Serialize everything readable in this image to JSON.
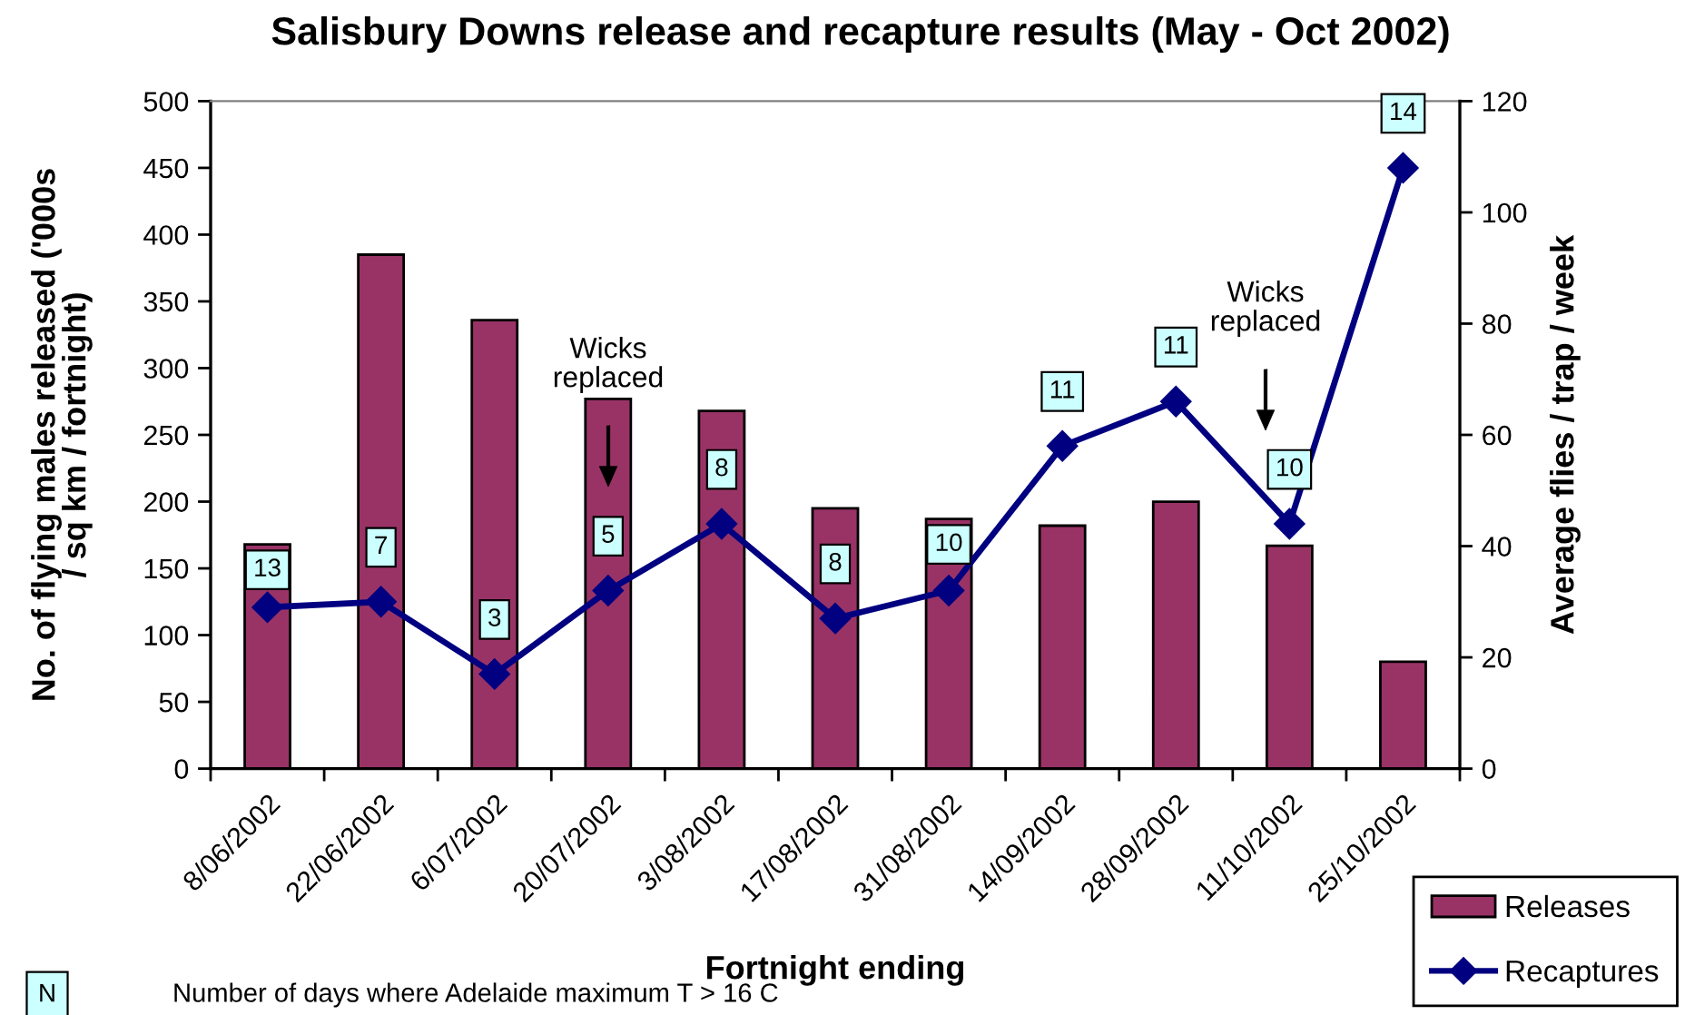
{
  "chart_data": {
    "type": "bar",
    "title": "Salisbury Downs release and recapture results (May - Oct 2002)",
    "xlabel": "Fortnight ending",
    "ylabel": "No. of flying males released ('000s\n/ sq km / fortnight)",
    "y2label": "Average flies / trap / week",
    "categories": [
      "8/06/2002",
      "22/06/2002",
      "6/07/2002",
      "20/07/2002",
      "3/08/2002",
      "17/08/2002",
      "31/08/2002",
      "14/09/2002",
      "28/09/2002",
      "11/10/2002",
      "25/10/2002"
    ],
    "series": [
      {
        "name": "Releases",
        "color": "#993366",
        "values": [
          168,
          385,
          336,
          277,
          268,
          195,
          187,
          182,
          200,
          167,
          80
        ]
      },
      {
        "name": "Recaptures",
        "type": "line",
        "axis": "y2",
        "color": "#000080",
        "marker": "diamond",
        "line_style": "solid",
        "values": [
          29,
          30,
          17,
          32,
          44,
          27,
          32,
          58,
          66,
          44,
          108
        ]
      }
    ],
    "ylim": [
      0,
      500
    ],
    "yticks": [
      0,
      50,
      100,
      150,
      200,
      250,
      300,
      350,
      400,
      450,
      500
    ],
    "y2lim": [
      0,
      120
    ],
    "y2ticks": [
      0,
      20,
      40,
      60,
      80,
      100,
      120
    ],
    "legend": "bottom right",
    "annotations": [
      "13",
      "7",
      "3",
      "5",
      "8",
      "8",
      "10",
      "11",
      "11",
      "10",
      "14",
      "Wicks\nreplaced",
      "Wicks\nreplaced",
      "N",
      "Number of days where Adelaide maximum T > 16 C"
    ]
  }
}
